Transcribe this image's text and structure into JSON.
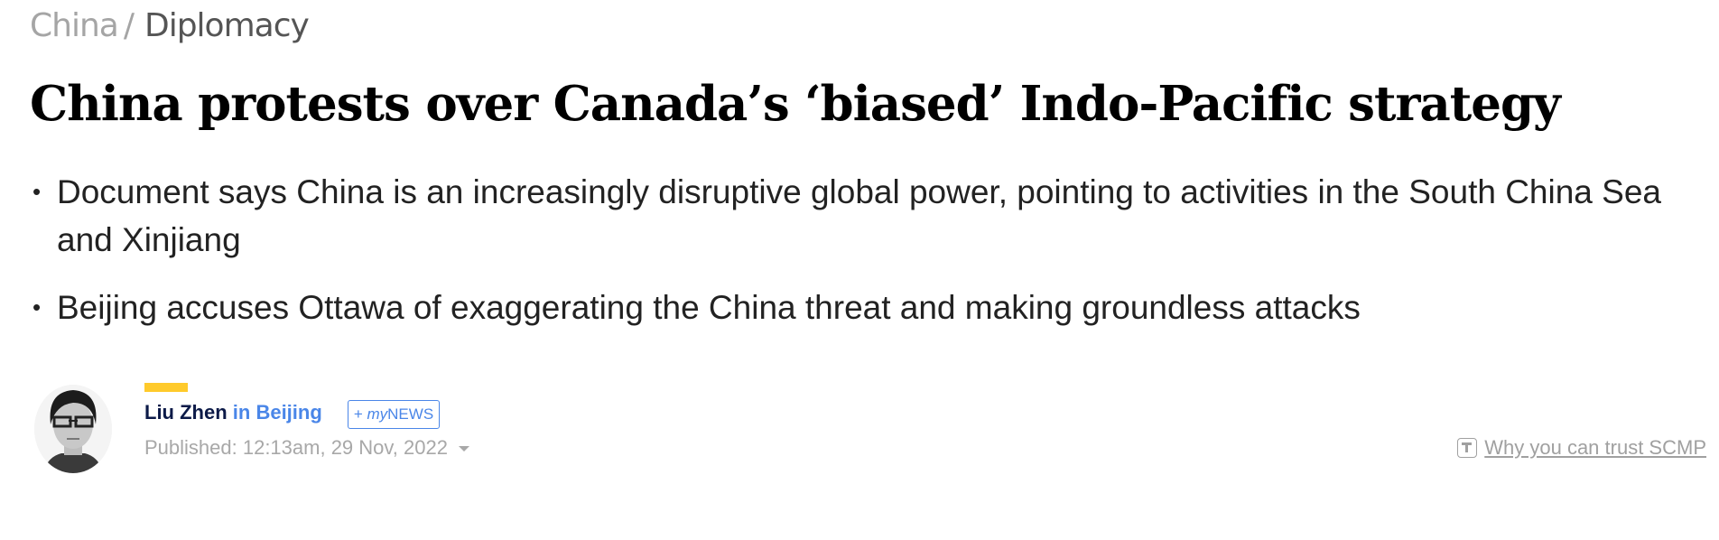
{
  "breadcrumb": {
    "section": "China",
    "separator": "/",
    "subsection": "Diplomacy"
  },
  "headline": "China protests over Canada’s ‘biased’ Indo-Pacific strategy",
  "summary": [
    "Document says China is an increasingly disruptive global power, pointing to activities in the South China Sea and Xinjiang",
    "Beijing accuses Ottawa of exaggerating the China threat and making groundless attacks"
  ],
  "author": {
    "name": "Liu Zhen",
    "location": "in Beijing"
  },
  "mynews": {
    "plus": "+ ",
    "my": "my",
    "news": "NEWS"
  },
  "published": "Published: 12:13am, 29 Nov, 2022",
  "trust_link": "Why you can trust SCMP",
  "colors": {
    "accent_yellow": "#ffca2b",
    "link_blue": "#4a86e8",
    "author_navy": "#0c1a48"
  }
}
